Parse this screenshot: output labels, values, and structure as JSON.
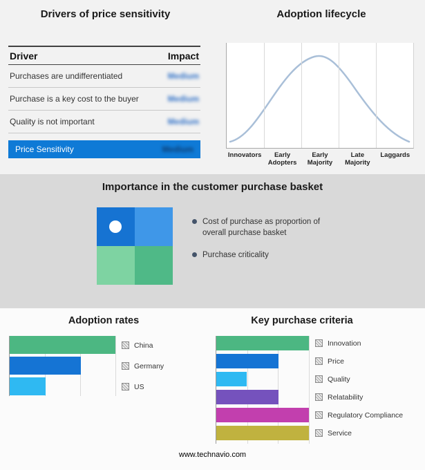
{
  "footer": {
    "text": "www.technavio.com"
  },
  "colors": {
    "highlight_blue": "#0f7ad6",
    "bullet": "#44546a"
  },
  "basket_panel": {
    "title": "Importance in the customer purchase basket",
    "bullets": [
      "Cost of purchase as proportion of overall purchase basket",
      "Purchase criticality"
    ],
    "quadrant_colors": {
      "top_left": "#1673d2",
      "top_right": "#3f97e8",
      "bottom_left": "#7ed3a2",
      "bottom_right": "#4fb987"
    }
  },
  "chart_data": [
    {
      "type": "table",
      "title": "Drivers of price sensitivity",
      "columns": [
        "Driver",
        "Impact"
      ],
      "rows": [
        [
          "Purchases are undifferentiated",
          "Medium"
        ],
        [
          "Purchase is a key cost to the buyer",
          "Medium"
        ],
        [
          "Quality is not important",
          "Medium"
        ]
      ],
      "highlight_row": {
        "label": "Price Sensitivity",
        "impact": "Medium"
      },
      "note": "Impact values appear blurred in the source image"
    },
    {
      "type": "area",
      "title": "Adoption lifecycle",
      "categories": [
        "Innovators",
        "Early Adopters",
        "Early Majority",
        "Late Majority",
        "Laggards"
      ],
      "description": "Bell curve peaking at Early Majority",
      "curve_color": "#a9bfd8",
      "grid": true
    },
    {
      "type": "bar",
      "title": "Adoption rates",
      "orientation": "horizontal",
      "categories": [
        "China",
        "Germany",
        "US"
      ],
      "values": [
        100,
        67,
        34
      ],
      "unit": "relative % (no axis labels shown)",
      "bar_colors": [
        "#4cb782",
        "#1574d4",
        "#2fb9f2"
      ],
      "xlim": [
        0,
        100
      ],
      "grid": true,
      "legend_position": "right"
    },
    {
      "type": "bar",
      "title": "Key purchase criteria",
      "orientation": "horizontal",
      "categories": [
        "Innovation",
        "Price",
        "Quality",
        "Relatability",
        "Regulatory Compliance",
        "Service"
      ],
      "values": [
        100,
        67,
        33,
        67,
        100,
        100
      ],
      "unit": "relative % (no axis labels shown)",
      "bar_colors": [
        "#4cb782",
        "#1574d4",
        "#2fb9f2",
        "#7552bd",
        "#c23fae",
        "#c0b23f"
      ],
      "xlim": [
        0,
        100
      ],
      "grid": true,
      "legend_position": "right"
    }
  ]
}
